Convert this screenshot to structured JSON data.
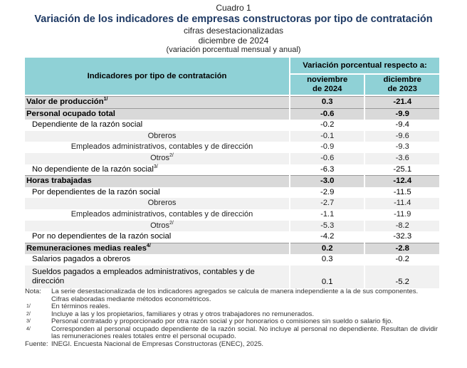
{
  "header": {
    "cuadro": "Cuadro 1",
    "title": "Variación de los indicadores de empresas constructoras por tipo de contratación",
    "subtitle": "cifras desestacionalizadas",
    "period": "diciembre de 2024",
    "note": "(variación porcentual mensual y anual)"
  },
  "table": {
    "col_label": "Indicadores por tipo de contratación",
    "group_label": "Variación porcentual respecto a:",
    "col1": [
      "noviembre",
      "de 2024"
    ],
    "col2": [
      "diciembre",
      "de 2023"
    ],
    "rows": [
      {
        "label": "Valor de producción",
        "sup": "1/",
        "v1": "0.3",
        "v2": "-21.4",
        "level": "main"
      },
      {
        "label": "Personal ocupado total",
        "sup": "",
        "v1": "-0.6",
        "v2": "-9.9",
        "level": "main"
      },
      {
        "label": "Dependiente de la razón social",
        "sup": "",
        "v1": "-0.2",
        "v2": "-9.4",
        "level": "sub1"
      },
      {
        "label": "Obreros",
        "sup": "",
        "v1": "-0.1",
        "v2": "-9.6",
        "level": "sub2"
      },
      {
        "label": "Empleados administrativos, contables y de dirección",
        "sup": "",
        "v1": "-0.9",
        "v2": "-9.3",
        "level": "sub2"
      },
      {
        "label": "Otros",
        "sup": "2/",
        "v1": "-0.6",
        "v2": "-3.6",
        "level": "sub2"
      },
      {
        "label": "No dependiente de la razón social",
        "sup": "3/",
        "v1": "-6.3",
        "v2": "-25.1",
        "level": "sub1"
      },
      {
        "label": "Horas trabajadas",
        "sup": "",
        "v1": "-3.0",
        "v2": "-12.4",
        "level": "main"
      },
      {
        "label": "Por dependientes de la razón social",
        "sup": "",
        "v1": "-2.9",
        "v2": "-11.5",
        "level": "sub1"
      },
      {
        "label": "Obreros",
        "sup": "",
        "v1": "-2.7",
        "v2": "-11.4",
        "level": "sub2"
      },
      {
        "label": "Empleados administrativos, contables y de dirección",
        "sup": "",
        "v1": "-1.1",
        "v2": "-11.9",
        "level": "sub2"
      },
      {
        "label": "Otros",
        "sup": "2/",
        "v1": "-5.3",
        "v2": "-8.2",
        "level": "sub2"
      },
      {
        "label": "Por no dependientes de la razón social",
        "sup": "",
        "v1": "-4.2",
        "v2": "-32.3",
        "level": "sub1"
      },
      {
        "label": "Remuneraciones medias reales",
        "sup": "4/",
        "v1": "0.2",
        "v2": "-2.8",
        "level": "main"
      },
      {
        "label": "Salarios pagados a obreros",
        "sup": "",
        "v1": "0.3",
        "v2": "-0.2",
        "level": "sub1"
      },
      {
        "label": "Sueldos pagados a empleados administrativos, contables y de dirección",
        "sup": "",
        "v1": "0.1",
        "v2": "-5.2",
        "level": "sub1"
      }
    ]
  },
  "notes": {
    "nota_key": "Nota:",
    "nota_text": "La serie desestacionalizada de los indicadores agregados se calcula de manera independiente a la de sus componentes.",
    "nota_text2": "Cifras elaboradas mediante métodos econométricos.",
    "footnotes": [
      {
        "key": "1/",
        "text": "En términos reales."
      },
      {
        "key": "2/",
        "text": "Incluye a las y los propietarios, familiares y otras y otros trabajadores no remunerados."
      },
      {
        "key": "3/",
        "text": "Personal contratado y proporcionado por otra razón social y por honorarios o comisiones sin sueldo o salario fijo."
      },
      {
        "key": "4/",
        "text": "Corresponden al personal ocupado dependiente de la razón social. No incluye al personal no dependiente. Resultan de dividir las remuneraciones reales totales entre el personal ocupado."
      }
    ],
    "fuente_key": "Fuente:",
    "fuente_text": "INEGI. Encuesta Nacional de Empresas Constructoras (ENEC), 2025."
  }
}
